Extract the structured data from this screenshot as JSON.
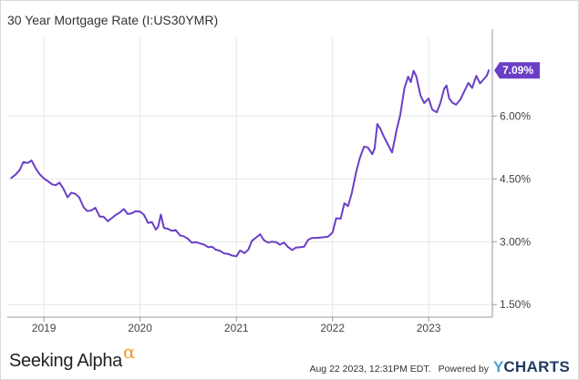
{
  "chart_data": {
    "type": "line",
    "title": "30 Year Mortgage Rate (I:US30YMR)",
    "xlabel": "",
    "ylabel": "",
    "x_tick_labels": [
      "2019",
      "2020",
      "2021",
      "2022",
      "2023"
    ],
    "y_tick_labels": [
      "1.50%",
      "3.00%",
      "4.50%",
      "6.00%"
    ],
    "ylim": [
      1.2,
      7.9
    ],
    "grid": true,
    "series": [
      {
        "name": "",
        "color": "#6a3fc6",
        "x": [
          "2018-08-30",
          "2018-09-15",
          "2018-10-01",
          "2018-10-15",
          "2018-11-01",
          "2018-11-15",
          "2018-12-01",
          "2018-12-15",
          "2019-01-01",
          "2019-01-15",
          "2019-02-01",
          "2019-02-15",
          "2019-03-01",
          "2019-03-15",
          "2019-04-01",
          "2019-04-15",
          "2019-05-01",
          "2019-05-15",
          "2019-06-01",
          "2019-06-15",
          "2019-07-01",
          "2019-07-15",
          "2019-08-01",
          "2019-08-15",
          "2019-09-01",
          "2019-09-15",
          "2019-10-01",
          "2019-10-15",
          "2019-11-01",
          "2019-11-15",
          "2019-12-01",
          "2019-12-15",
          "2020-01-01",
          "2020-01-15",
          "2020-02-01",
          "2020-02-15",
          "2020-03-01",
          "2020-03-10",
          "2020-03-20",
          "2020-04-01",
          "2020-04-15",
          "2020-05-01",
          "2020-05-15",
          "2020-06-01",
          "2020-06-15",
          "2020-07-01",
          "2020-07-15",
          "2020-08-01",
          "2020-08-15",
          "2020-09-01",
          "2020-09-15",
          "2020-10-01",
          "2020-10-15",
          "2020-11-01",
          "2020-11-15",
          "2020-12-01",
          "2020-12-15",
          "2021-01-01",
          "2021-01-15",
          "2021-02-01",
          "2021-02-15",
          "2021-03-01",
          "2021-03-15",
          "2021-04-01",
          "2021-04-15",
          "2021-05-01",
          "2021-05-15",
          "2021-06-01",
          "2021-06-15",
          "2021-07-01",
          "2021-07-15",
          "2021-08-01",
          "2021-08-15",
          "2021-09-01",
          "2021-09-15",
          "2021-10-01",
          "2021-10-15",
          "2021-11-01",
          "2021-11-15",
          "2021-12-01",
          "2021-12-15",
          "2022-01-01",
          "2022-01-15",
          "2022-02-01",
          "2022-02-15",
          "2022-03-01",
          "2022-03-15",
          "2022-04-01",
          "2022-04-15",
          "2022-05-01",
          "2022-05-15",
          "2022-06-01",
          "2022-06-10",
          "2022-06-20",
          "2022-07-01",
          "2022-07-15",
          "2022-08-01",
          "2022-08-15",
          "2022-09-01",
          "2022-09-15",
          "2022-10-01",
          "2022-10-15",
          "2022-10-25",
          "2022-11-05",
          "2022-11-15",
          "2022-12-01",
          "2022-12-15",
          "2023-01-01",
          "2023-01-15",
          "2023-02-01",
          "2023-02-15",
          "2023-03-01",
          "2023-03-10",
          "2023-03-20",
          "2023-04-01",
          "2023-04-15",
          "2023-05-01",
          "2023-05-15",
          "2023-06-01",
          "2023-06-15",
          "2023-07-01",
          "2023-07-15",
          "2023-08-01",
          "2023-08-10",
          "2023-08-17"
        ],
        "values": [
          4.52,
          4.6,
          4.71,
          4.9,
          4.88,
          4.94,
          4.75,
          4.62,
          4.51,
          4.45,
          4.37,
          4.35,
          4.41,
          4.28,
          4.06,
          4.17,
          4.14,
          4.06,
          3.82,
          3.73,
          3.75,
          3.81,
          3.6,
          3.6,
          3.49,
          3.56,
          3.64,
          3.69,
          3.78,
          3.66,
          3.68,
          3.73,
          3.72,
          3.65,
          3.45,
          3.47,
          3.29,
          3.36,
          3.65,
          3.33,
          3.31,
          3.26,
          3.28,
          3.15,
          3.13,
          3.07,
          2.98,
          2.99,
          2.96,
          2.93,
          2.87,
          2.88,
          2.81,
          2.78,
          2.72,
          2.71,
          2.67,
          2.65,
          2.79,
          2.73,
          2.81,
          3.02,
          3.09,
          3.18,
          3.04,
          2.98,
          3.0,
          2.99,
          2.93,
          2.98,
          2.88,
          2.8,
          2.86,
          2.87,
          2.88,
          3.05,
          3.09,
          3.09,
          3.1,
          3.11,
          3.12,
          3.22,
          3.56,
          3.55,
          3.92,
          3.85,
          4.16,
          4.67,
          5.0,
          5.27,
          5.25,
          5.09,
          5.23,
          5.81,
          5.7,
          5.51,
          5.3,
          5.13,
          5.66,
          6.02,
          6.66,
          6.94,
          6.81,
          7.08,
          6.95,
          6.49,
          6.31,
          6.42,
          6.15,
          6.09,
          6.32,
          6.65,
          6.73,
          6.42,
          6.32,
          6.27,
          6.39,
          6.57,
          6.79,
          6.67,
          6.96,
          6.78,
          6.9,
          6.96,
          7.09
        ]
      }
    ],
    "last_value_label": "7.09%"
  },
  "footer": {
    "brand_left": "Seeking Alpha",
    "brand_alpha_glyph": "α",
    "timestamp": "Aug 22 2023, 12:31PM EDT.",
    "powered_by": "Powered by",
    "ycharts_y": "Y",
    "ycharts_rest": "CHARTS"
  }
}
